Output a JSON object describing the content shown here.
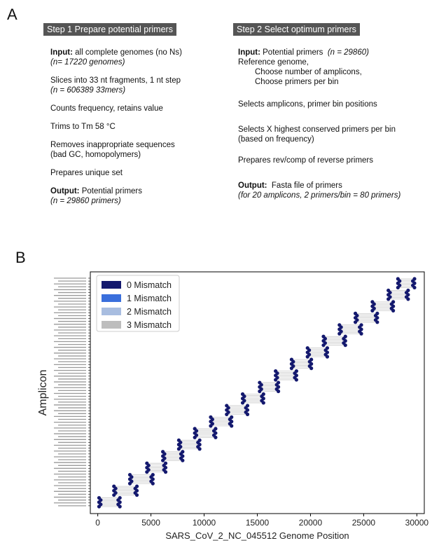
{
  "panel_a": {
    "label": "A",
    "step1": {
      "header": "Step 1 Prepare potential primers",
      "input_label": "Input:",
      "input_text": " all complete genomes (no Ns)",
      "input_note": "(n= 17220 genomes)",
      "slice_text": "Slices into 33 nt fragments, 1 nt step",
      "slice_note": "(n = 606389 33mers)",
      "counts": "Counts frequency, retains value",
      "trims": "Trims to Tm 58 °C",
      "removes_1": "Removes inappropriate sequences",
      "removes_2": "(bad GC, homopolymers)",
      "prepares": "Prepares unique set",
      "output_label": "Output:",
      "output_text": " Potential primers",
      "output_note": "(n = 29860 primers)"
    },
    "step2": {
      "header": "Step 2 Select optimum primers",
      "input_label": "Input:",
      "input_text": " Potential primers  ",
      "input_note": "(n = 29860)",
      "ref": "Reference genome,",
      "choose_amp": "Choose number of amplicons,",
      "choose_primers": "Choose primers per bin",
      "selects_amp": "Selects amplicons, primer bin positions",
      "selects_x_1": "Selects X highest conserved primers per bin",
      "selects_x_2": "(based on frequency)",
      "prepares_rev": "Prepares rev/comp of reverse primers",
      "output_label": "Output:",
      "output_text": "  Fasta file of primers",
      "output_note": "(for 20 amplicons, 2 primers/bin = 80 primers)"
    }
  },
  "panel_b": {
    "label": "B",
    "colors": {
      "mismatch_0": "#14196e",
      "mismatch_1": "#3a6fdc",
      "mismatch_2": "#a8bde0",
      "mismatch_3": "#bdbdbd",
      "span_line": "#c8c8c8"
    },
    "chart_data": {
      "type": "scatter",
      "title": "",
      "xlabel": "SARS_CoV_2_NC_045512 Genome Position",
      "ylabel": "Amplicon",
      "xlim": [
        -700,
        30700
      ],
      "xticks": [
        0,
        5000,
        10000,
        15000,
        20000,
        25000,
        30000
      ],
      "legend_position": "top-left",
      "legend": [
        "0 Mismatch",
        "1 Mismatch",
        "2 Mismatch",
        "3 Mismatch"
      ],
      "num_amplicons": 20,
      "series": [
        {
          "name": "0 Mismatch",
          "amplicons": [
            {
              "left": 200,
              "right": 2000
            },
            {
              "left": 1600,
              "right": 3600
            },
            {
              "left": 3100,
              "right": 5100
            },
            {
              "left": 4700,
              "right": 6300
            },
            {
              "left": 6200,
              "right": 7900
            },
            {
              "left": 7700,
              "right": 9500
            },
            {
              "left": 9200,
              "right": 11000
            },
            {
              "left": 10700,
              "right": 12500
            },
            {
              "left": 12200,
              "right": 14000
            },
            {
              "left": 13700,
              "right": 15500
            },
            {
              "left": 15300,
              "right": 16900
            },
            {
              "left": 16800,
              "right": 18600
            },
            {
              "left": 18300,
              "right": 20000
            },
            {
              "left": 19800,
              "right": 21500
            },
            {
              "left": 21300,
              "right": 23200
            },
            {
              "left": 22800,
              "right": 24700
            },
            {
              "left": 24300,
              "right": 26200
            },
            {
              "left": 25900,
              "right": 27700
            },
            {
              "left": 27400,
              "right": 29100
            },
            {
              "left": 28300,
              "right": 29700
            }
          ]
        }
      ]
    }
  }
}
